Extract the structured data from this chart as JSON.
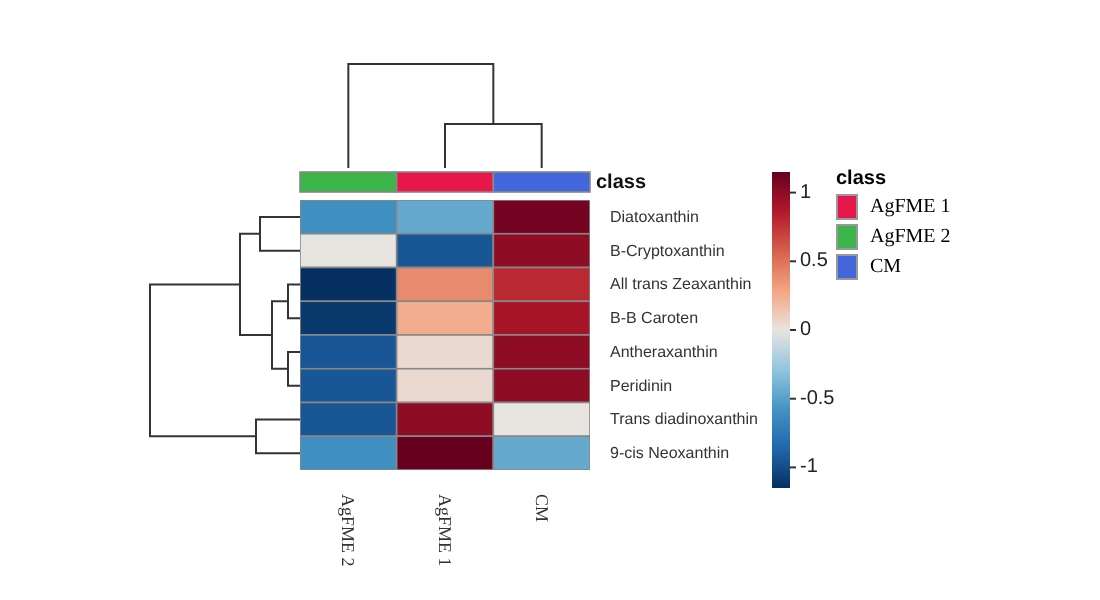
{
  "chart_data": {
    "type": "heatmap",
    "categories": [
      "AgFME 2",
      "AgFME 1",
      "CM"
    ],
    "y_categories": [
      "Diatoxanthin",
      "B-Cryptoxanthin",
      "All trans Zeaxanthin",
      "B-B Caroten",
      "Antheraxanthin",
      "Peridinin",
      "Trans diadinoxanthin",
      "9-cis Neoxanthin"
    ],
    "cells": [
      [
        -0.6,
        -0.45,
        1.1
      ],
      [
        0,
        -0.95,
        1.0
      ],
      [
        -1.15,
        0.4,
        0.8
      ],
      [
        -1.1,
        0.25,
        0.9
      ],
      [
        -0.95,
        0.05,
        1.0
      ],
      [
        -0.95,
        0.05,
        1.0
      ],
      [
        -0.95,
        1.0,
        0
      ],
      [
        -0.6,
        1.15,
        -0.45
      ]
    ],
    "clim": [
      -1.15,
      1.15
    ],
    "cticks": [
      -1,
      -0.5,
      0,
      0.5,
      1
    ],
    "legend_title": "class",
    "legend": "right",
    "series": [
      {
        "name": "AgFME 1",
        "color": "#e8174b",
        "values": [
          null,
          null,
          null
        ]
      },
      {
        "name": "AgFME 2",
        "color": "#3cb54a",
        "values": [
          null,
          null,
          null
        ]
      },
      {
        "name": "CM",
        "color": "#4466dd",
        "values": [
          null,
          null,
          null
        ]
      }
    ]
  }
}
